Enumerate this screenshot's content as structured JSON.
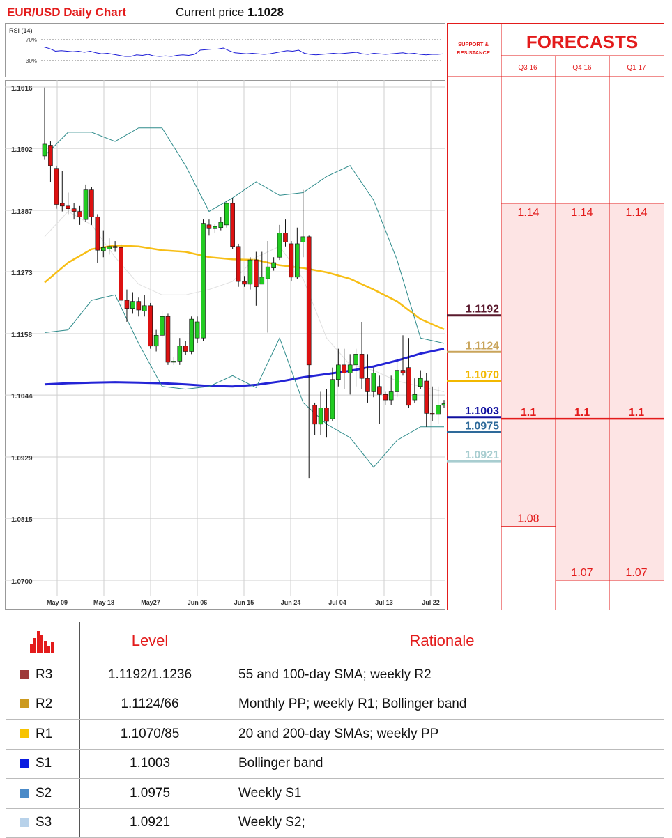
{
  "header": {
    "title": "EUR/USD Daily Chart",
    "price_label": "Current price",
    "price_value": "1.1028"
  },
  "colors": {
    "accent_red": "#e31b1b",
    "sma_100": "#f7be16",
    "sma_200": "#2424d6",
    "bollinger": "#2e8b8b",
    "sma_20": "#e0e0e0",
    "candle_up": "#22cc22",
    "candle_down": "#dd1111",
    "forecast_fill": "#fde4e4"
  },
  "forecast_panel": {
    "sr_header": "SUPPORT & RESISTANCE",
    "title": "FORECASTS",
    "quarters": [
      "Q3 16",
      "Q4 16",
      "Q1 17"
    ],
    "ranges": [
      {
        "quarter": "Q3 16",
        "high": 1.14,
        "mid": 1.1,
        "low": 1.08
      },
      {
        "quarter": "Q4 16",
        "high": 1.14,
        "mid": 1.1,
        "low": 1.07
      },
      {
        "quarter": "Q1 17",
        "high": 1.14,
        "mid": 1.1,
        "low": 1.07
      }
    ],
    "labels": {
      "high": [
        "1.14",
        "1.14",
        "1.14"
      ],
      "mid": [
        "1.1",
        "1.1",
        "1.1"
      ],
      "low": [
        "1.08",
        "1.07",
        "1.07"
      ]
    }
  },
  "chart_data": {
    "type": "candlestick",
    "title": "EUR/USD Daily Chart",
    "ylim": [
      1.07,
      1.1616
    ],
    "y_ticks": [
      "1.1616",
      "1.1502",
      "1.1387",
      "1.1273",
      "1.1158",
      "1.1044",
      "1.0929",
      "1.0815",
      "1.0700"
    ],
    "x_ticks": [
      "May 09",
      "May 18",
      "May27",
      "Jun 06",
      "Jun 15",
      "Jun 24",
      "Jul 04",
      "Jul 13",
      "Jul 22"
    ],
    "grid": true,
    "candles": [
      [
        1.1488,
        1.151,
        1.1615,
        1.1482
      ],
      [
        1.1508,
        1.147,
        1.1515,
        1.144
      ],
      [
        1.1465,
        1.1398,
        1.147,
        1.139
      ],
      [
        1.14,
        1.1395,
        1.146,
        1.1385
      ],
      [
        1.1395,
        1.139,
        1.142,
        1.138
      ],
      [
        1.139,
        1.1385,
        1.14,
        1.137
      ],
      [
        1.1385,
        1.1375,
        1.1395,
        1.136
      ],
      [
        1.137,
        1.1425,
        1.1435,
        1.1365
      ],
      [
        1.1425,
        1.1375,
        1.143,
        1.136
      ],
      [
        1.1375,
        1.1313,
        1.138,
        1.129
      ],
      [
        1.1312,
        1.1318,
        1.135,
        1.13
      ],
      [
        1.1315,
        1.132,
        1.1335,
        1.1305
      ],
      [
        1.132,
        1.1318,
        1.133,
        1.131
      ],
      [
        1.1318,
        1.122,
        1.1325,
        1.121
      ],
      [
        1.122,
        1.1205,
        1.124,
        1.118
      ],
      [
        1.1205,
        1.1218,
        1.1235,
        1.1195
      ],
      [
        1.1218,
        1.1202,
        1.1225,
        1.119
      ],
      [
        1.12,
        1.121,
        1.123,
        1.119
      ],
      [
        1.121,
        1.1135,
        1.1215,
        1.113
      ],
      [
        1.1135,
        1.1155,
        1.1165,
        1.1125
      ],
      [
        1.1155,
        1.119,
        1.12,
        1.115
      ],
      [
        1.119,
        1.1105,
        1.1195,
        1.11
      ],
      [
        1.1105,
        1.1107,
        1.1115,
        1.11
      ],
      [
        1.1107,
        1.1135,
        1.115,
        1.11
      ],
      [
        1.1135,
        1.1125,
        1.1145,
        1.1118
      ],
      [
        1.1125,
        1.1185,
        1.119,
        1.112
      ],
      [
        1.115,
        1.118,
        1.119,
        1.114
      ],
      [
        1.115,
        1.1363,
        1.137,
        1.1145
      ],
      [
        1.136,
        1.1353,
        1.137,
        1.134
      ],
      [
        1.1353,
        1.1357,
        1.1362,
        1.1345
      ],
      [
        1.1355,
        1.1365,
        1.1375,
        1.135
      ],
      [
        1.136,
        1.14,
        1.1405,
        1.1355
      ],
      [
        1.14,
        1.132,
        1.141,
        1.1315
      ],
      [
        1.132,
        1.1255,
        1.1325,
        1.1245
      ],
      [
        1.1255,
        1.125,
        1.1265,
        1.1245
      ],
      [
        1.125,
        1.1295,
        1.13,
        1.124
      ],
      [
        1.1295,
        1.1245,
        1.131,
        1.121
      ],
      [
        1.125,
        1.1263,
        1.131,
        1.125
      ],
      [
        1.126,
        1.1282,
        1.133,
        1.116
      ],
      [
        1.128,
        1.129,
        1.13,
        1.1275
      ],
      [
        1.13,
        1.1345,
        1.136,
        1.1295
      ],
      [
        1.1345,
        1.1328,
        1.137,
        1.132
      ],
      [
        1.1325,
        1.1263,
        1.133,
        1.1255
      ],
      [
        1.1263,
        1.1325,
        1.1355,
        1.126
      ],
      [
        1.1328,
        1.1338,
        1.1425,
        1.13
      ],
      [
        1.1338,
        1.11,
        1.134,
        1.089
      ],
      [
        1.1025,
        1.099,
        1.103,
        1.097
      ],
      [
        1.099,
        1.102,
        1.105,
        1.097
      ],
      [
        1.102,
        1.0995,
        1.1055,
        1.0965
      ],
      [
        1.1,
        1.1073,
        1.1095,
        1.0995
      ],
      [
        1.1073,
        1.11,
        1.113,
        1.106
      ],
      [
        1.11,
        1.1085,
        1.113,
        1.1055
      ],
      [
        1.1085,
        1.11,
        1.112,
        1.1045
      ],
      [
        1.11,
        1.112,
        1.113,
        1.106
      ],
      [
        1.112,
        1.1075,
        1.118,
        1.1055
      ],
      [
        1.1075,
        1.105,
        1.112,
        1.103
      ],
      [
        1.105,
        1.1085,
        1.1095,
        1.104
      ],
      [
        1.106,
        1.1045,
        1.108,
        1.099
      ],
      [
        1.1045,
        1.1035,
        1.105,
        1.1025
      ],
      [
        1.1035,
        1.105,
        1.108,
        1.1025
      ],
      [
        1.105,
        1.109,
        1.111,
        1.104
      ],
      [
        1.109,
        1.1085,
        1.1155,
        1.108
      ],
      [
        1.1095,
        1.1025,
        1.115,
        1.102
      ],
      [
        1.1035,
        1.1045,
        1.1075,
        1.103
      ],
      [
        1.106,
        1.1075,
        1.109,
        1.1055
      ],
      [
        1.107,
        1.101,
        1.1085,
        1.0985
      ],
      [
        1.101,
        1.1008,
        1.106,
        1.0995
      ],
      [
        1.1008,
        1.1025,
        1.106,
        1.099
      ],
      [
        1.1025,
        1.1028,
        1.1035,
        1.102
      ]
    ],
    "series": [
      {
        "name": "SMA 100",
        "values": [
          1.1253,
          1.129,
          1.1315,
          1.1322,
          1.132,
          1.1313,
          1.131,
          1.13,
          1.1296,
          1.1295,
          1.1285,
          1.128,
          1.1272,
          1.126,
          1.124,
          1.1218,
          1.1185,
          1.1166
        ]
      },
      {
        "name": "SMA 200",
        "values": [
          1.1064,
          1.1066,
          1.1067,
          1.1068,
          1.1067,
          1.1066,
          1.1064,
          1.1061,
          1.106,
          1.1063,
          1.1069,
          1.1077,
          1.1083,
          1.1089,
          1.1097,
          1.1108,
          1.1121,
          1.113
        ]
      },
      {
        "name": "Bollinger upper",
        "values": [
          1.1488,
          1.1532,
          1.1532,
          1.1515,
          1.154,
          1.154,
          1.147,
          1.1385,
          1.141,
          1.144,
          1.1415,
          1.142,
          1.145,
          1.147,
          1.1406,
          1.1295,
          1.115,
          1.114
        ]
      },
      {
        "name": "Bollinger lower",
        "values": [
          1.116,
          1.1165,
          1.122,
          1.123,
          1.114,
          1.106,
          1.1055,
          1.106,
          1.108,
          1.1058,
          1.115,
          1.103,
          1.099,
          1.0965,
          1.091,
          1.096,
          1.0985,
          1.0985
        ]
      },
      {
        "name": "SMA 20",
        "values": [
          1.1338,
          1.1385,
          1.136,
          1.13,
          1.125,
          1.123,
          1.123,
          1.124,
          1.1255,
          1.13,
          1.132,
          1.126,
          1.115,
          1.11,
          1.109,
          1.107,
          1.106,
          1.105
        ]
      }
    ],
    "sr_levels": [
      {
        "label": "1.1192",
        "value": 1.1192,
        "color": "#5a1a2e"
      },
      {
        "label": "1.1124",
        "value": 1.1124,
        "color": "#c9a45a"
      },
      {
        "label": "1.1070",
        "value": 1.107,
        "color": "#f2b800"
      },
      {
        "label": "1.1003",
        "value": 1.1003,
        "color": "#1010a0"
      },
      {
        "label": "1.0975",
        "value": 1.0975,
        "color": "#2e6a9a"
      },
      {
        "label": "1.0921",
        "value": 1.0921,
        "color": "#a8cdd0"
      }
    ]
  },
  "rsi": {
    "label": "RSI (14)",
    "levels": [
      "70%",
      "30%"
    ],
    "values": [
      56,
      53,
      48,
      49,
      48,
      47,
      48,
      46,
      48,
      45,
      43,
      44,
      42,
      40,
      38,
      38,
      41,
      40,
      42,
      39,
      38,
      39,
      38,
      40,
      41,
      40,
      42,
      50,
      51,
      52,
      52,
      54,
      49,
      45,
      44,
      43,
      44,
      43,
      42,
      43,
      45,
      47,
      49,
      48,
      50,
      44,
      42,
      41,
      42,
      43,
      44,
      43,
      44,
      45,
      46,
      43,
      42,
      44,
      43,
      42,
      43,
      44,
      45,
      43,
      44,
      42,
      41,
      42,
      42,
      43
    ]
  },
  "legend_table": {
    "headers": [
      "Level",
      "Rationale"
    ],
    "rows": [
      {
        "code": "R3",
        "color": "#9e3a3a",
        "level": "1.1192/1.1236",
        "rationale": "55 and 100-day SMA; weekly R2"
      },
      {
        "code": "R2",
        "color": "#cc9a1e",
        "level": "1.1124/66",
        "rationale": "Monthly PP; weekly R1; Bollinger band"
      },
      {
        "code": "R1",
        "color": "#f7c300",
        "level": "1.1070/85",
        "rationale": "20 and 200-day SMAs; weekly PP"
      },
      {
        "code": "S1",
        "color": "#0a1be0",
        "level": "1.1003",
        "rationale": "Bollinger band"
      },
      {
        "code": "S2",
        "color": "#4a8ac8",
        "level": "1.0975",
        "rationale": "Weekly S1"
      },
      {
        "code": "S3",
        "color": "#b8d2ea",
        "level": "1.0921",
        "rationale": "Weekly S2;"
      }
    ]
  }
}
